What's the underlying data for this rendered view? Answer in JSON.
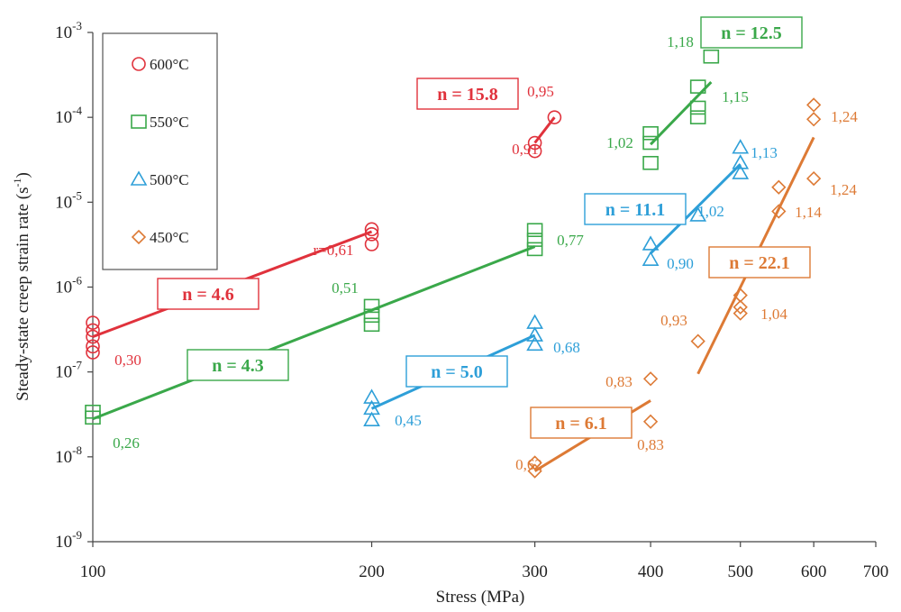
{
  "chart_data": {
    "type": "scatter",
    "xlabel": "Stress (MPa)",
    "ylabel": "Steady-state creep strain rate (s",
    "ylabel_sup": "-1",
    "ylabel_end": ")",
    "x_scale": "log",
    "y_scale": "log",
    "xlim": [
      100,
      700
    ],
    "ylim": [
      1e-09,
      0.001
    ],
    "x_ticks": [
      100,
      200,
      300,
      400,
      500,
      600,
      700
    ],
    "x_tick_labels": [
      "100",
      "200",
      "300",
      "400",
      "500",
      "600",
      "700"
    ],
    "y_ticks": [
      1e-09,
      1e-08,
      1e-07,
      1e-06,
      1e-05,
      0.0001,
      0.001
    ],
    "y_tick_labels": [
      {
        "base": "10",
        "exp": "-9"
      },
      {
        "base": "10",
        "exp": "-8"
      },
      {
        "base": "10",
        "exp": "-7"
      },
      {
        "base": "10",
        "exp": "-6"
      },
      {
        "base": "10",
        "exp": "-5"
      },
      {
        "base": "10",
        "exp": "-4"
      },
      {
        "base": "10",
        "exp": "-3"
      }
    ],
    "grid": false,
    "legend_position": "top-left",
    "series": [
      {
        "name": "600°C",
        "marker": "circle",
        "color": "#e0323c",
        "points": [
          [
            100,
            3.8e-07
          ],
          [
            100,
            3.1e-07
          ],
          [
            100,
            2.6e-07
          ],
          [
            100,
            2e-07
          ],
          [
            100,
            1.7e-07
          ],
          [
            200,
            4.8e-06
          ],
          [
            200,
            4.2e-06
          ],
          [
            200,
            3.2e-06
          ],
          [
            300,
            5e-05
          ],
          [
            300,
            4e-05
          ],
          [
            315,
            0.0001
          ]
        ],
        "fits": [
          {
            "x": [
              100,
              200
            ],
            "y": [
              2.6e-07,
              4.5e-06
            ],
            "label": "n = 4.6"
          },
          {
            "x": [
              300,
              315
            ],
            "y": [
              5e-05,
              0.0001
            ],
            "label": "n = 15.8"
          }
        ],
        "annotations": [
          "0,30",
          "r=0,61",
          "0,91",
          "0,95"
        ]
      },
      {
        "name": "550°C",
        "marker": "square",
        "color": "#3aa84a",
        "points": [
          [
            100,
            3.4e-08
          ],
          [
            100,
            2.9e-08
          ],
          [
            200,
            6e-07
          ],
          [
            200,
            4.6e-07
          ],
          [
            200,
            3.6e-07
          ],
          [
            300,
            4.7e-06
          ],
          [
            300,
            3.6e-06
          ],
          [
            300,
            2.8e-06
          ],
          [
            400,
            6.5e-05
          ],
          [
            400,
            5e-05
          ],
          [
            400,
            2.9e-05
          ],
          [
            450,
            0.00023
          ],
          [
            450,
            0.00013
          ],
          [
            450,
            0.0001
          ],
          [
            465,
            0.00052
          ]
        ],
        "fits": [
          {
            "x": [
              100,
              300
            ],
            "y": [
              2.8e-08,
              3e-06
            ],
            "label": "n = 4.3"
          },
          {
            "x": [
              400,
              465
            ],
            "y": [
              4.8e-05,
              0.00026
            ],
            "label": "n = 12.5"
          }
        ],
        "annotations": [
          "0,26",
          "0,51",
          "0,77",
          "1,02",
          "1,18",
          "1,15"
        ]
      },
      {
        "name": "500°C",
        "marker": "triangle",
        "color": "#2e9fd8",
        "points": [
          [
            200,
            5e-08
          ],
          [
            200,
            3.7e-08
          ],
          [
            200,
            2.7e-08
          ],
          [
            300,
            3.8e-07
          ],
          [
            300,
            2.7e-07
          ],
          [
            300,
            2.1e-07
          ],
          [
            400,
            3.2e-06
          ],
          [
            400,
            2.1e-06
          ],
          [
            450,
            7e-06
          ],
          [
            500,
            4.4e-05
          ],
          [
            500,
            2.9e-05
          ],
          [
            500,
            2.2e-05
          ]
        ],
        "fits": [
          {
            "x": [
              200,
              300
            ],
            "y": [
              3.7e-08,
              2.7e-07
            ],
            "label": "n = 5.0"
          },
          {
            "x": [
              400,
              500
            ],
            "y": [
              2.5e-06,
              2.8e-05
            ],
            "label": "n = 11.1"
          }
        ],
        "annotations": [
          "0,45",
          "0,68",
          "0,90",
          "1,02",
          "1,13"
        ]
      },
      {
        "name": "450°C",
        "marker": "diamond",
        "color": "#dd7a35",
        "points": [
          [
            300,
            8.5e-09
          ],
          [
            300,
            6.8e-09
          ],
          [
            400,
            8.3e-08
          ],
          [
            400,
            2.6e-08
          ],
          [
            450,
            2.3e-07
          ],
          [
            500,
            8e-07
          ],
          [
            500,
            5.8e-07
          ],
          [
            500,
            4.9e-07
          ],
          [
            550,
            1.5e-05
          ],
          [
            550,
            7.8e-06
          ],
          [
            600,
            0.00014
          ],
          [
            600,
            9.5e-05
          ],
          [
            600,
            1.9e-05
          ]
        ],
        "fits": [
          {
            "x": [
              300,
              400
            ],
            "y": [
              6.8e-09,
              4.6e-08
            ],
            "label": "n = 6.1"
          },
          {
            "x": [
              450,
              600
            ],
            "y": [
              9.5e-08,
              5.8e-05
            ],
            "label": "n = 22.1"
          }
        ],
        "annotations": [
          "0,62",
          "0,83",
          "0,83",
          "0,93",
          "1,04",
          "1,14",
          "1,24",
          "1,24"
        ]
      }
    ]
  }
}
